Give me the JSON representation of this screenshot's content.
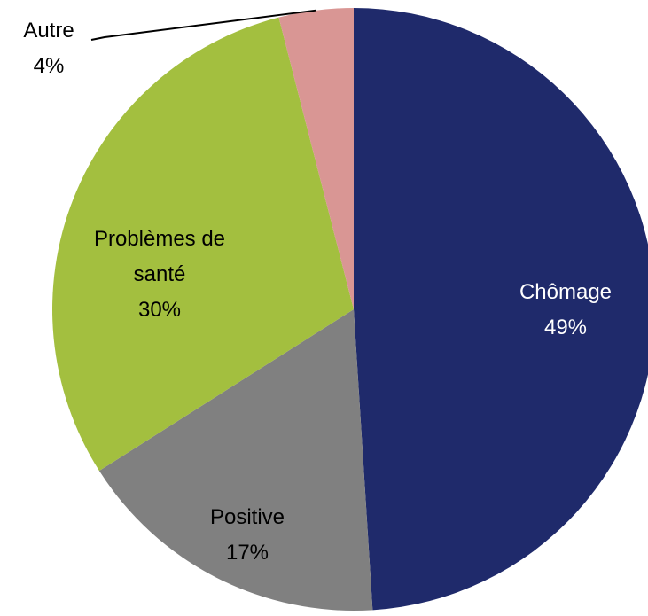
{
  "chart_data": {
    "type": "pie",
    "categories": [
      "Chômage",
      "Positive",
      "Problèmes de santé",
      "Autre"
    ],
    "values": [
      49,
      17,
      30,
      4
    ],
    "value_labels": [
      "49%",
      "17%",
      "30%",
      "4%"
    ],
    "colors": [
      "#1f2a6b",
      "#808080",
      "#a3bf3f",
      "#d99694"
    ]
  }
}
